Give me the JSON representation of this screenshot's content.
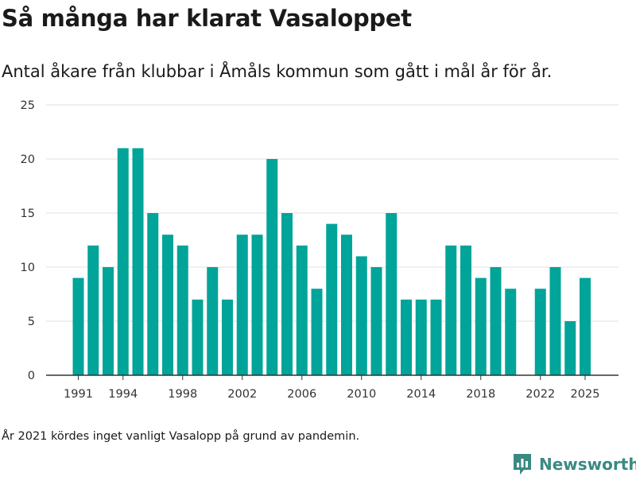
{
  "header": {
    "title": "Så många har klarat Vasaloppet",
    "subtitle": "Antal åkare från klubbar i Åmåls kommun som gått i mål år för år."
  },
  "footer": {
    "note": "År 2021 kördes inget vanligt Vasalopp på grund av pandemin.",
    "brand": "Newsworthy"
  },
  "colors": {
    "bar": "#00a499",
    "brand": "#3a8a82",
    "grid": "#e1e1e1",
    "axis": "#333333"
  },
  "icons": {
    "brand_logo": "bar-chart-speech-bubble-icon"
  },
  "chart_data": {
    "type": "bar",
    "x": [
      1991,
      1992,
      1993,
      1994,
      1995,
      1996,
      1997,
      1998,
      1999,
      2000,
      2001,
      2002,
      2003,
      2004,
      2005,
      2006,
      2007,
      2008,
      2009,
      2010,
      2011,
      2012,
      2013,
      2014,
      2015,
      2016,
      2017,
      2018,
      2019,
      2020,
      2021,
      2022,
      2023,
      2024,
      2025
    ],
    "values": [
      9,
      12,
      10,
      21,
      21,
      15,
      13,
      12,
      7,
      10,
      7,
      13,
      13,
      20,
      15,
      12,
      8,
      14,
      13,
      11,
      10,
      15,
      7,
      7,
      7,
      12,
      12,
      9,
      10,
      8,
      null,
      8,
      10,
      5,
      9
    ],
    "x_ticks": [
      "1991",
      "1994",
      "1998",
      "2002",
      "2006",
      "2010",
      "2014",
      "2018",
      "2022",
      "2025"
    ],
    "y_ticks": [
      "0",
      "5",
      "10",
      "15",
      "20",
      "25"
    ],
    "ylim": [
      0,
      25
    ],
    "grid": true,
    "legend": "none"
  }
}
